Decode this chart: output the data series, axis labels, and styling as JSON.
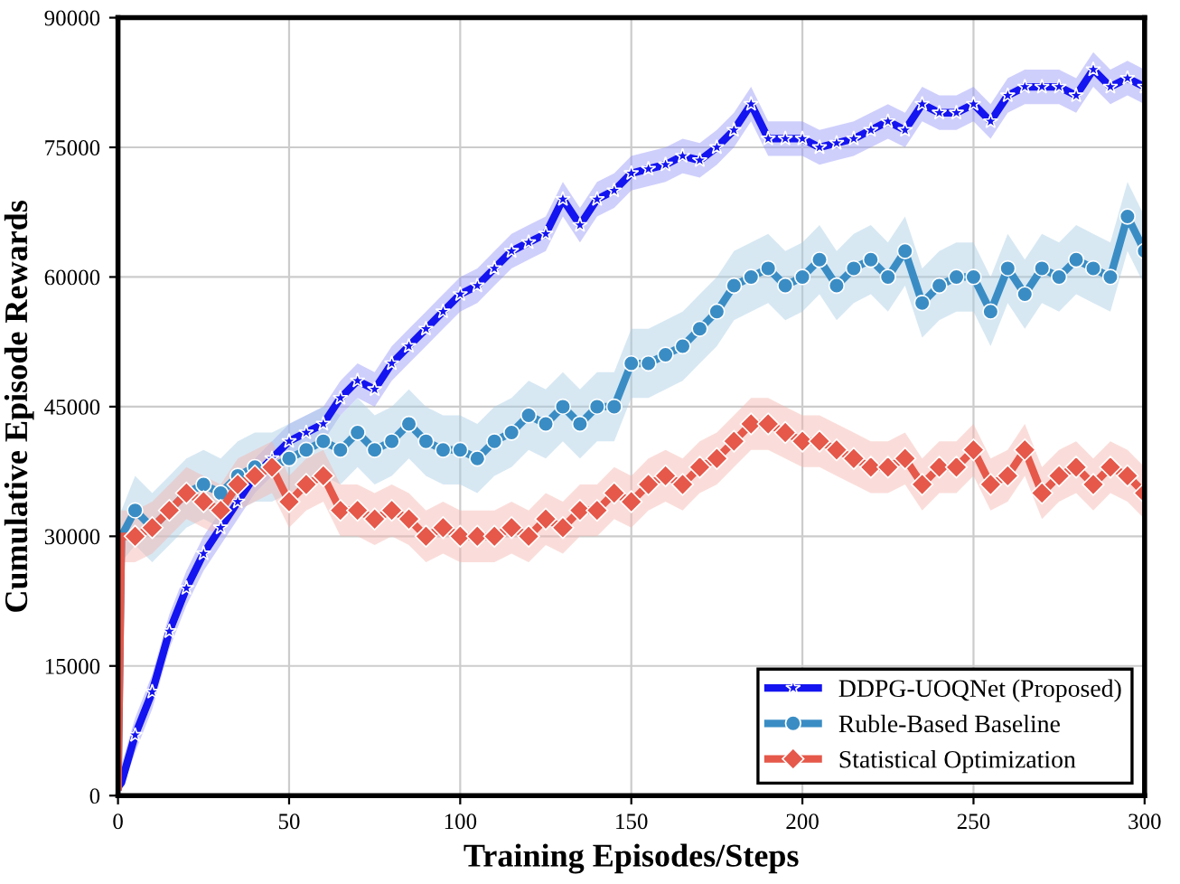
{
  "chart_data": {
    "type": "line",
    "xlabel": "Training Episodes/Steps",
    "ylabel": "Cumulative Episode Rewards",
    "xlim": [
      0,
      300
    ],
    "ylim": [
      0,
      90000
    ],
    "xticks": [
      0,
      50,
      100,
      150,
      200,
      250,
      300
    ],
    "yticks": [
      0,
      15000,
      30000,
      45000,
      60000,
      75000,
      90000
    ],
    "grid": true,
    "legend": "bottom right",
    "line_style": "solid",
    "x": [
      0,
      1,
      5,
      10,
      15,
      20,
      25,
      30,
      35,
      40,
      45,
      50,
      55,
      60,
      65,
      70,
      75,
      80,
      85,
      90,
      95,
      100,
      105,
      110,
      115,
      120,
      125,
      130,
      135,
      140,
      145,
      150,
      155,
      160,
      165,
      170,
      175,
      180,
      185,
      190,
      195,
      200,
      205,
      210,
      215,
      220,
      225,
      230,
      235,
      240,
      245,
      250,
      255,
      260,
      265,
      270,
      275,
      280,
      285,
      290,
      295,
      300
    ],
    "series": [
      {
        "name": "DDPG-UOQNet (Proposed)",
        "color": "#1414f0",
        "marker": "star",
        "values": [
          1000,
          1500,
          7000,
          12000,
          19000,
          24000,
          28000,
          31000,
          34000,
          37000,
          39000,
          41000,
          42000,
          43000,
          46000,
          48000,
          47000,
          50000,
          52000,
          54000,
          56000,
          58000,
          59000,
          61000,
          63000,
          64000,
          65000,
          69000,
          66000,
          69000,
          70000,
          72000,
          72500,
          73000,
          74000,
          73500,
          75000,
          77000,
          80000,
          76000,
          76000,
          76000,
          75000,
          75500,
          76000,
          77000,
          78000,
          77000,
          80000,
          79000,
          79000,
          80000,
          78000,
          81000,
          82000,
          82000,
          82000,
          81000,
          84000,
          82000,
          83000,
          82000
        ],
        "lower": [
          0,
          500,
          5000,
          10000,
          17000,
          22000,
          26000,
          29000,
          32000,
          35000,
          37000,
          39000,
          40000,
          41000,
          44000,
          46000,
          45000,
          48000,
          50000,
          52000,
          54000,
          56000,
          57000,
          59000,
          61000,
          62000,
          63000,
          67000,
          64000,
          67000,
          68000,
          70000,
          70500,
          71000,
          72000,
          71500,
          73000,
          75000,
          78000,
          74000,
          74000,
          74000,
          73000,
          73500,
          74000,
          75000,
          76000,
          75000,
          78000,
          77000,
          77000,
          78000,
          76000,
          79000,
          80000,
          80000,
          80000,
          79000,
          82000,
          80000,
          81000,
          80000
        ],
        "upper": [
          2000,
          3500,
          9000,
          14000,
          21000,
          26000,
          30000,
          33000,
          36000,
          39000,
          41000,
          43000,
          44000,
          45000,
          48000,
          50000,
          49000,
          52000,
          54000,
          56000,
          58000,
          60000,
          61000,
          63000,
          65000,
          66000,
          67000,
          71000,
          68000,
          71000,
          72000,
          74000,
          74500,
          75000,
          76000,
          75500,
          77000,
          79000,
          82000,
          78000,
          78000,
          78000,
          77000,
          77500,
          78000,
          79000,
          80000,
          79000,
          82000,
          81000,
          81000,
          82000,
          80000,
          83000,
          84000,
          84000,
          84000,
          83000,
          86000,
          84000,
          85000,
          84000
        ]
      },
      {
        "name": "Ruble-Based Baseline",
        "color": "#3a8dc4",
        "marker": "circle",
        "values": [
          1000,
          30000,
          33000,
          31000,
          33000,
          35000,
          36000,
          35000,
          37000,
          38000,
          38000,
          39000,
          40000,
          41000,
          40000,
          42000,
          40000,
          41000,
          43000,
          41000,
          40000,
          40000,
          39000,
          41000,
          42000,
          44000,
          43000,
          45000,
          43000,
          45000,
          45000,
          50000,
          50000,
          51000,
          52000,
          54000,
          56000,
          59000,
          60000,
          61000,
          59000,
          60000,
          62000,
          59000,
          61000,
          62000,
          60000,
          63000,
          57000,
          59000,
          60000,
          60000,
          56000,
          61000,
          58000,
          61000,
          60000,
          62000,
          61000,
          60000,
          67000,
          63000
        ],
        "lower": [
          0,
          27000,
          29000,
          27000,
          29000,
          31000,
          32000,
          31000,
          33000,
          34000,
          34000,
          35000,
          36000,
          37000,
          36000,
          38000,
          36000,
          37000,
          39000,
          37000,
          36000,
          36000,
          35000,
          37000,
          38000,
          40000,
          39000,
          41000,
          39000,
          41000,
          41000,
          46000,
          46000,
          47000,
          48000,
          50000,
          52000,
          55000,
          56000,
          57000,
          55000,
          56000,
          58000,
          55000,
          57000,
          58000,
          56000,
          59000,
          53000,
          55000,
          56000,
          56000,
          52000,
          57000,
          54000,
          57000,
          56000,
          58000,
          57000,
          56000,
          63000,
          59000
        ],
        "upper": [
          2000,
          33000,
          37000,
          35000,
          37000,
          39000,
          40000,
          39000,
          41000,
          42000,
          42000,
          43000,
          44000,
          45000,
          44000,
          46000,
          44000,
          45000,
          47000,
          45000,
          44000,
          44000,
          43000,
          45000,
          46000,
          48000,
          47000,
          49000,
          47000,
          49000,
          49000,
          54000,
          54000,
          55000,
          56000,
          58000,
          60000,
          63000,
          64000,
          65000,
          63000,
          64000,
          66000,
          63000,
          65000,
          66000,
          64000,
          67000,
          61000,
          63000,
          64000,
          64000,
          60000,
          65000,
          62000,
          65000,
          64000,
          66000,
          65000,
          64000,
          71000,
          67000
        ]
      },
      {
        "name": "Statistical Optimization",
        "color": "#e5584a",
        "marker": "diamond",
        "values": [
          1000,
          30000,
          30000,
          31000,
          33000,
          35000,
          34000,
          33000,
          36000,
          37000,
          38000,
          34000,
          36000,
          37000,
          33000,
          33000,
          32000,
          33000,
          32000,
          30000,
          31000,
          30000,
          30000,
          30000,
          31000,
          30000,
          32000,
          31000,
          33000,
          33000,
          35000,
          34000,
          36000,
          37000,
          36000,
          38000,
          39000,
          41000,
          43000,
          43000,
          42000,
          41000,
          41000,
          40000,
          39000,
          38000,
          38000,
          39000,
          36000,
          38000,
          38000,
          40000,
          36000,
          37000,
          40000,
          35000,
          37000,
          38000,
          36000,
          38000,
          37000,
          35000
        ],
        "lower": [
          0,
          27000,
          27000,
          28000,
          30000,
          32000,
          31000,
          30000,
          33000,
          34000,
          35000,
          31000,
          33000,
          34000,
          30000,
          30000,
          29000,
          30000,
          29000,
          27000,
          28000,
          27000,
          27000,
          27000,
          28000,
          27000,
          29000,
          28000,
          30000,
          30000,
          32000,
          31000,
          33000,
          34000,
          33000,
          35000,
          36000,
          38000,
          40000,
          40000,
          39000,
          38000,
          38000,
          37000,
          36000,
          35000,
          35000,
          36000,
          33000,
          35000,
          35000,
          37000,
          33000,
          34000,
          37000,
          32000,
          34000,
          35000,
          33000,
          35000,
          34000,
          32000
        ],
        "upper": [
          2000,
          33000,
          33000,
          34000,
          36000,
          38000,
          37000,
          36000,
          39000,
          40000,
          41000,
          37000,
          39000,
          40000,
          36000,
          36000,
          35000,
          36000,
          35000,
          33000,
          34000,
          33000,
          33000,
          33000,
          34000,
          33000,
          35000,
          34000,
          36000,
          36000,
          38000,
          37000,
          39000,
          40000,
          39000,
          41000,
          42000,
          44000,
          46000,
          46000,
          45000,
          44000,
          44000,
          43000,
          42000,
          41000,
          41000,
          42000,
          39000,
          41000,
          41000,
          43000,
          39000,
          40000,
          43000,
          38000,
          40000,
          41000,
          39000,
          41000,
          40000,
          38000
        ]
      }
    ]
  }
}
